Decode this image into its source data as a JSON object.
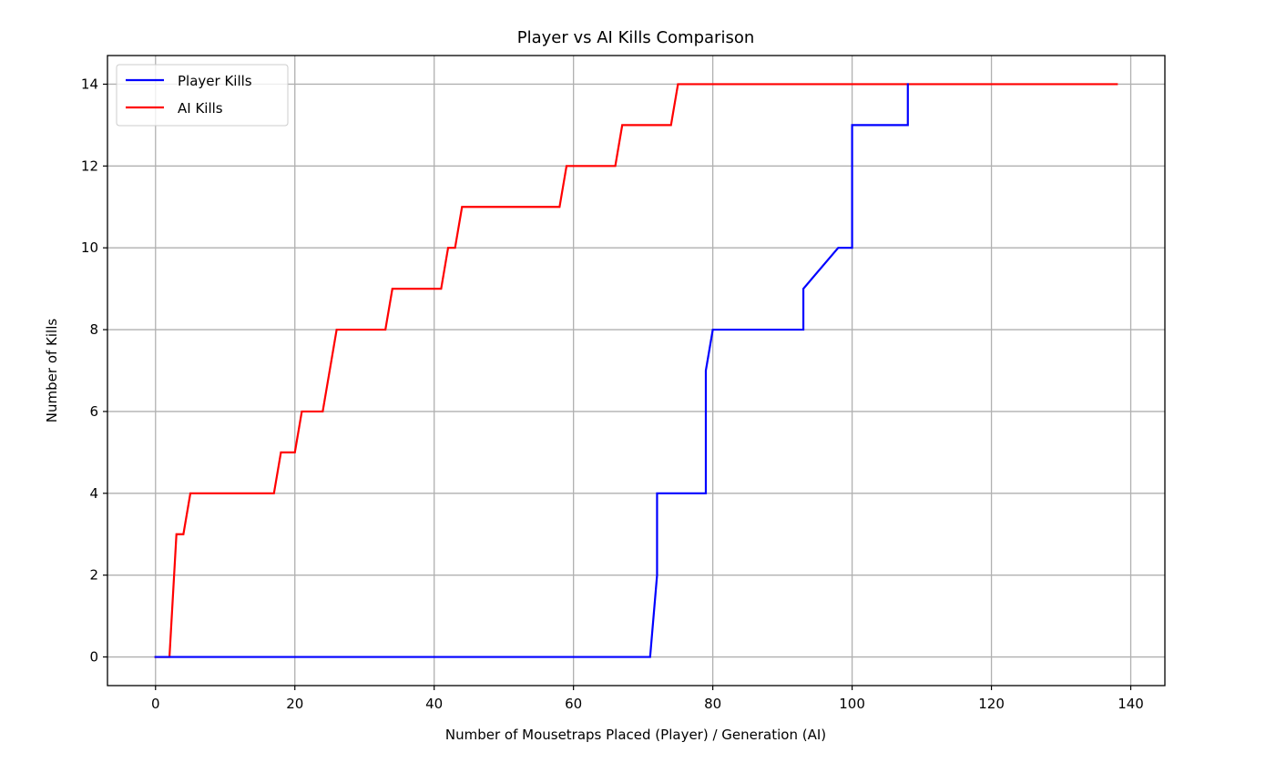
{
  "chart_data": {
    "type": "line",
    "title": "Player vs AI Kills Comparison",
    "xlabel": "Number of Mousetraps Placed (Player) / Generation (AI)",
    "ylabel": "Number of Kills",
    "xlim": [
      -6.9,
      144.9
    ],
    "ylim": [
      -0.7,
      14.7
    ],
    "xticks": [
      0,
      20,
      40,
      60,
      80,
      100,
      120,
      140
    ],
    "yticks": [
      0,
      2,
      4,
      6,
      8,
      10,
      12,
      14
    ],
    "grid": true,
    "legend_position": "top-left",
    "series": [
      {
        "name": "Player Kills",
        "color": "#0000ff",
        "x": [
          0,
          71,
          72,
          72,
          79,
          79,
          80,
          93,
          93,
          98,
          100,
          100,
          108,
          108
        ],
        "y": [
          0,
          0,
          2,
          4,
          4,
          7,
          8,
          8,
          9,
          10,
          10,
          13,
          13,
          14
        ]
      },
      {
        "name": "AI Kills",
        "color": "#ff0000",
        "x": [
          0,
          2,
          3,
          4,
          5,
          17,
          18,
          20,
          21,
          24,
          26,
          33,
          34,
          41,
          42,
          43,
          44,
          58,
          59,
          66,
          67,
          74,
          75,
          138
        ],
        "y": [
          0,
          0,
          3,
          3,
          4,
          4,
          5,
          5,
          6,
          6,
          8,
          8,
          9,
          9,
          10,
          10,
          11,
          11,
          12,
          12,
          13,
          13,
          14,
          14
        ]
      }
    ]
  }
}
